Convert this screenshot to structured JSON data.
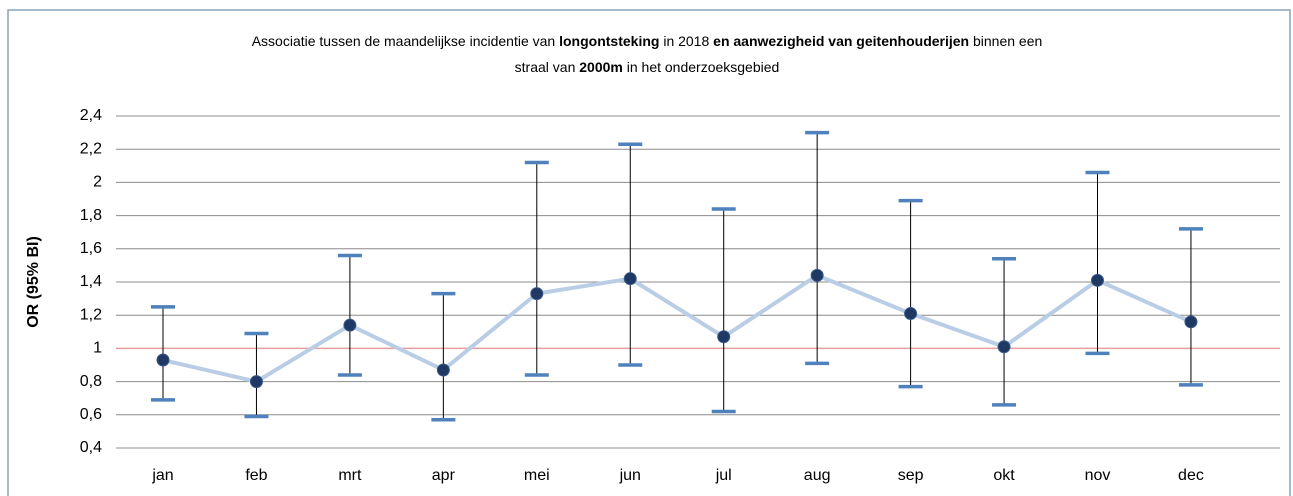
{
  "chart_data": {
    "type": "errorbar_line",
    "title": [
      {
        "text": "Associatie tussen de maandelijkse incidentie van ",
        "bold": false
      },
      {
        "text": "longontsteking",
        "bold": true
      },
      {
        "text": " in 2018 ",
        "bold": false
      },
      {
        "text": "en aanwezigheid van geitenhouderijen",
        "bold": true
      },
      {
        "text": "  binnen een",
        "bold": false
      }
    ],
    "title_line2": [
      {
        "text": "straal van ",
        "bold": false
      },
      {
        "text": "2000m",
        "bold": true
      },
      {
        "text": " in het onderzoeksgebied",
        "bold": false
      }
    ],
    "y_label": "OR (95% BI)",
    "categories": [
      "jan",
      "feb",
      "mrt",
      "apr",
      "mei",
      "jun",
      "jul",
      "aug",
      "sep",
      "okt",
      "nov",
      "dec"
    ],
    "values": [
      0.93,
      0.8,
      1.14,
      0.87,
      1.33,
      1.42,
      1.07,
      1.44,
      1.21,
      1.01,
      1.41,
      1.16
    ],
    "lower": [
      0.69,
      0.59,
      0.84,
      0.57,
      0.84,
      0.9,
      0.62,
      0.91,
      0.77,
      0.66,
      0.97,
      0.78
    ],
    "upper": [
      1.25,
      1.09,
      1.56,
      1.33,
      2.12,
      2.23,
      1.84,
      2.3,
      1.89,
      1.54,
      2.06,
      1.72
    ],
    "line_color": "#b9cde5",
    "marker_color": "#1f3864",
    "cap_color": "#4f81bd",
    "reference_line": {
      "value": 1,
      "color": "#e8a0a0"
    },
    "ylim": [
      0.4,
      2.4
    ],
    "yticks": [
      {
        "value": 0.4,
        "label": "0,4"
      },
      {
        "value": 0.6,
        "label": "0,6"
      },
      {
        "value": 0.8,
        "label": "0,8"
      },
      1,
      {
        "value": 1.2,
        "label": "1,2"
      },
      {
        "value": 1.4,
        "label": "1,4"
      },
      {
        "value": 1.6,
        "label": "1,6"
      },
      {
        "value": 1.8,
        "label": "1,8"
      },
      2,
      {
        "value": 2.2,
        "label": "2,2"
      },
      {
        "value": 2.4,
        "label": "2,4"
      }
    ],
    "grid": true
  }
}
